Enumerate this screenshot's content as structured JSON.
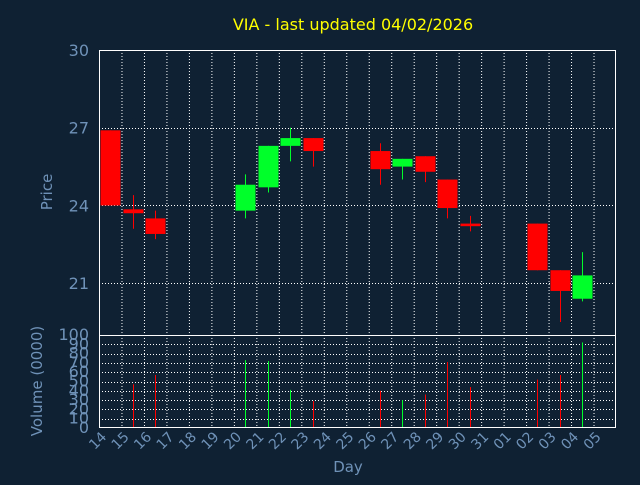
{
  "chart_data": {
    "type": "candlestick",
    "title": "VIA - last updated 04/02/2026",
    "ylabel": "Price",
    "volume_ylabel": "Volume (0000)",
    "xlabel": "Day",
    "price_ylim": [
      19,
      30
    ],
    "price_yticks": [
      21,
      24,
      27,
      30
    ],
    "volume_ylim": [
      0,
      100
    ],
    "volume_yticks": [
      0,
      10,
      20,
      30,
      40,
      50,
      60,
      70,
      80,
      90,
      100
    ],
    "grid": true,
    "x_ticks": [
      "14",
      "15",
      "16",
      "17",
      "18",
      "19",
      "20",
      "21",
      "22",
      "23",
      "24",
      "25",
      "26",
      "27",
      "28",
      "29",
      "30",
      "31",
      "01",
      "02",
      "03",
      "04",
      "05"
    ],
    "colors": {
      "up": "#00ff2a",
      "down": "#ff0000",
      "grid": "#ffffff",
      "axis": "#ffffff",
      "background": "#0f2133"
    },
    "candles": [
      {
        "day": "14",
        "open": 26.9,
        "close": 24.0,
        "high": 26.9,
        "low": 24.0
      },
      {
        "day": "15",
        "open": 23.85,
        "close": 23.7,
        "high": 24.4,
        "low": 23.1
      },
      {
        "day": "16",
        "open": 23.5,
        "close": 22.9,
        "high": 23.8,
        "low": 22.7
      },
      {
        "day": "20",
        "open": 23.8,
        "close": 24.8,
        "high": 25.2,
        "low": 23.5
      },
      {
        "day": "21",
        "open": 24.7,
        "close": 26.3,
        "high": 26.3,
        "low": 24.5
      },
      {
        "day": "22",
        "open": 26.3,
        "close": 26.6,
        "high": 27.0,
        "low": 25.7
      },
      {
        "day": "23",
        "open": 26.6,
        "close": 26.1,
        "high": 26.6,
        "low": 25.5
      },
      {
        "day": "26",
        "open": 26.1,
        "close": 25.4,
        "high": 26.4,
        "low": 24.8
      },
      {
        "day": "27",
        "open": 25.5,
        "close": 25.8,
        "high": 25.8,
        "low": 25.0
      },
      {
        "day": "28",
        "open": 25.9,
        "close": 25.3,
        "high": 25.9,
        "low": 24.9
      },
      {
        "day": "29",
        "open": 25.0,
        "close": 23.9,
        "high": 25.0,
        "low": 23.5
      },
      {
        "day": "30",
        "open": 23.3,
        "close": 23.2,
        "high": 23.6,
        "low": 23.0
      },
      {
        "day": "02",
        "open": 23.3,
        "close": 21.5,
        "high": 23.3,
        "low": 21.5
      },
      {
        "day": "03",
        "open": 21.5,
        "close": 20.7,
        "high": 21.5,
        "low": 19.5
      },
      {
        "day": "04",
        "open": 20.4,
        "close": 21.3,
        "high": 22.2,
        "low": 20.3
      }
    ],
    "volume": [
      {
        "day": "15",
        "value": 47,
        "color": "down"
      },
      {
        "day": "16",
        "value": 57,
        "color": "down"
      },
      {
        "day": "20",
        "value": 73,
        "color": "up"
      },
      {
        "day": "21",
        "value": 72,
        "color": "up"
      },
      {
        "day": "22",
        "value": 41,
        "color": "up"
      },
      {
        "day": "23",
        "value": 29,
        "color": "down"
      },
      {
        "day": "26",
        "value": 40,
        "color": "down"
      },
      {
        "day": "27",
        "value": 30,
        "color": "up"
      },
      {
        "day": "28",
        "value": 36,
        "color": "down"
      },
      {
        "day": "29",
        "value": 71,
        "color": "down"
      },
      {
        "day": "30",
        "value": 44,
        "color": "down"
      },
      {
        "day": "02",
        "value": 52,
        "color": "down"
      },
      {
        "day": "03",
        "value": 57,
        "color": "down"
      },
      {
        "day": "04",
        "value": 92,
        "color": "up"
      }
    ]
  }
}
